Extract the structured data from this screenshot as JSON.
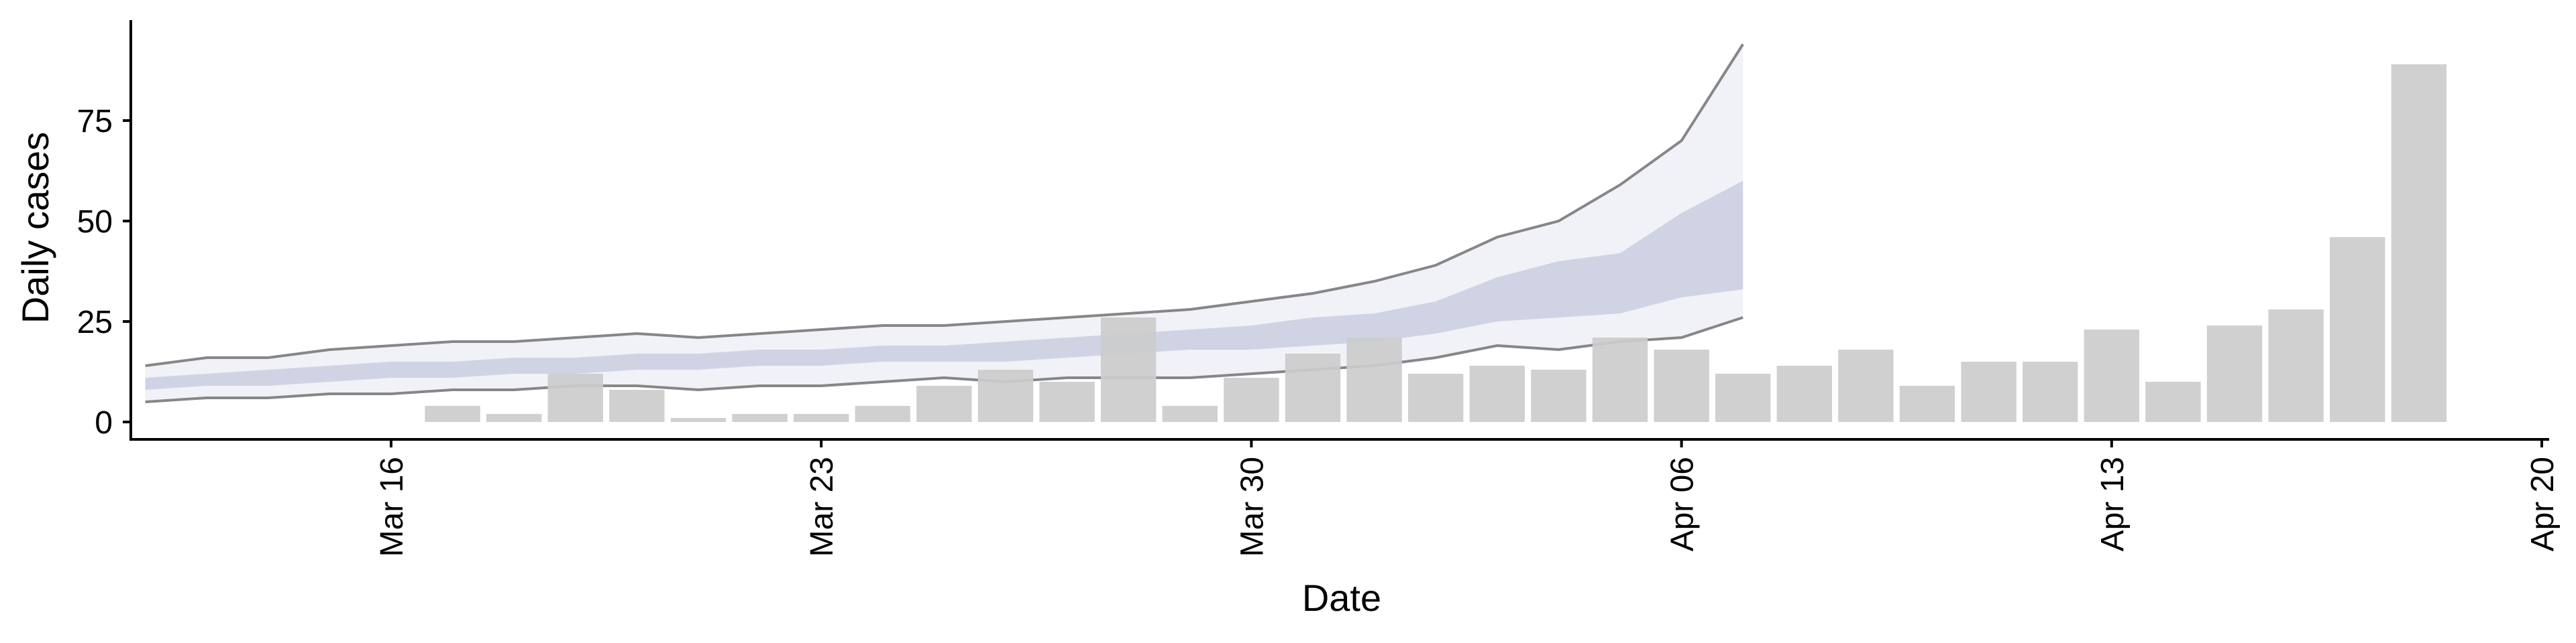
{
  "chart_data": {
    "type": "bar",
    "xlabel": "Date",
    "ylabel": "Daily cases",
    "x_tick_labels": [
      "Mar 16",
      "Mar 23",
      "Mar 30",
      "Apr 06",
      "Apr 13",
      "Apr 20"
    ],
    "x_tick_dates": [
      "2020-03-16",
      "2020-03-23",
      "2020-03-30",
      "2020-04-06",
      "2020-04-13",
      "2020-04-20"
    ],
    "y_ticks": [
      0,
      25,
      50,
      75
    ],
    "xlim": [
      "2020-03-11",
      "2020-04-20"
    ],
    "ylim": [
      -4,
      100
    ],
    "grid": false,
    "legend": "none",
    "series": [
      {
        "kind": "bar",
        "color": "#cccccc",
        "points": [
          {
            "date": "2020-03-17",
            "value": 4
          },
          {
            "date": "2020-03-18",
            "value": 2
          },
          {
            "date": "2020-03-19",
            "value": 12
          },
          {
            "date": "2020-03-20",
            "value": 8
          },
          {
            "date": "2020-03-21",
            "value": 1
          },
          {
            "date": "2020-03-22",
            "value": 2
          },
          {
            "date": "2020-03-23",
            "value": 2
          },
          {
            "date": "2020-03-24",
            "value": 4
          },
          {
            "date": "2020-03-25",
            "value": 9
          },
          {
            "date": "2020-03-26",
            "value": 13
          },
          {
            "date": "2020-03-27",
            "value": 10
          },
          {
            "date": "2020-03-28",
            "value": 26
          },
          {
            "date": "2020-03-29",
            "value": 4
          },
          {
            "date": "2020-03-30",
            "value": 11
          },
          {
            "date": "2020-03-31",
            "value": 17
          },
          {
            "date": "2020-04-01",
            "value": 21
          },
          {
            "date": "2020-04-02",
            "value": 12
          },
          {
            "date": "2020-04-03",
            "value": 14
          },
          {
            "date": "2020-04-04",
            "value": 13
          },
          {
            "date": "2020-04-05",
            "value": 21
          },
          {
            "date": "2020-04-06",
            "value": 18
          },
          {
            "date": "2020-04-07",
            "value": 12
          },
          {
            "date": "2020-04-08",
            "value": 14
          },
          {
            "date": "2020-04-09",
            "value": 18
          },
          {
            "date": "2020-04-10",
            "value": 9
          },
          {
            "date": "2020-04-11",
            "value": 15
          },
          {
            "date": "2020-04-12",
            "value": 15
          },
          {
            "date": "2020-04-13",
            "value": 23
          },
          {
            "date": "2020-04-14",
            "value": 10
          },
          {
            "date": "2020-04-15",
            "value": 24
          },
          {
            "date": "2020-04-16",
            "value": 28
          },
          {
            "date": "2020-04-17",
            "value": 46
          },
          {
            "date": "2020-04-18",
            "value": 89
          }
        ]
      },
      {
        "kind": "interval",
        "role": "outer",
        "color": "#eef0f6",
        "line_color": "#7a7a7a",
        "points": [
          {
            "date": "2020-03-12",
            "low": 5,
            "high": 14
          },
          {
            "date": "2020-03-13",
            "low": 6,
            "high": 16
          },
          {
            "date": "2020-03-14",
            "low": 6,
            "high": 16
          },
          {
            "date": "2020-03-15",
            "low": 7,
            "high": 18
          },
          {
            "date": "2020-03-16",
            "low": 7,
            "high": 19
          },
          {
            "date": "2020-03-17",
            "low": 8,
            "high": 20
          },
          {
            "date": "2020-03-18",
            "low": 8,
            "high": 20
          },
          {
            "date": "2020-03-19",
            "low": 9,
            "high": 21
          },
          {
            "date": "2020-03-20",
            "low": 9,
            "high": 22
          },
          {
            "date": "2020-03-21",
            "low": 8,
            "high": 21
          },
          {
            "date": "2020-03-22",
            "low": 9,
            "high": 22
          },
          {
            "date": "2020-03-23",
            "low": 9,
            "high": 23
          },
          {
            "date": "2020-03-24",
            "low": 10,
            "high": 24
          },
          {
            "date": "2020-03-25",
            "low": 11,
            "high": 24
          },
          {
            "date": "2020-03-26",
            "low": 10,
            "high": 25
          },
          {
            "date": "2020-03-27",
            "low": 11,
            "high": 26
          },
          {
            "date": "2020-03-28",
            "low": 11,
            "high": 27
          },
          {
            "date": "2020-03-29",
            "low": 11,
            "high": 28
          },
          {
            "date": "2020-03-30",
            "low": 12,
            "high": 30
          },
          {
            "date": "2020-03-31",
            "low": 13,
            "high": 32
          },
          {
            "date": "2020-04-01",
            "low": 14,
            "high": 35
          },
          {
            "date": "2020-04-02",
            "low": 16,
            "high": 39
          },
          {
            "date": "2020-04-03",
            "low": 19,
            "high": 46
          },
          {
            "date": "2020-04-04",
            "low": 18,
            "high": 50
          },
          {
            "date": "2020-04-05",
            "low": 20,
            "high": 59
          },
          {
            "date": "2020-04-06",
            "low": 21,
            "high": 70
          },
          {
            "date": "2020-04-07",
            "low": 26,
            "high": 94
          }
        ]
      },
      {
        "kind": "interval",
        "role": "inner",
        "color": "#c3c8dc",
        "points": [
          {
            "date": "2020-03-12",
            "low": 8,
            "high": 11
          },
          {
            "date": "2020-03-13",
            "low": 9,
            "high": 12
          },
          {
            "date": "2020-03-14",
            "low": 9,
            "high": 13
          },
          {
            "date": "2020-03-15",
            "low": 10,
            "high": 14
          },
          {
            "date": "2020-03-16",
            "low": 11,
            "high": 15
          },
          {
            "date": "2020-03-17",
            "low": 11,
            "high": 15
          },
          {
            "date": "2020-03-18",
            "low": 12,
            "high": 16
          },
          {
            "date": "2020-03-19",
            "low": 12,
            "high": 16
          },
          {
            "date": "2020-03-20",
            "low": 13,
            "high": 17
          },
          {
            "date": "2020-03-21",
            "low": 13,
            "high": 17
          },
          {
            "date": "2020-03-22",
            "low": 14,
            "high": 18
          },
          {
            "date": "2020-03-23",
            "low": 14,
            "high": 18
          },
          {
            "date": "2020-03-24",
            "low": 15,
            "high": 19
          },
          {
            "date": "2020-03-25",
            "low": 15,
            "high": 19
          },
          {
            "date": "2020-03-26",
            "low": 15,
            "high": 20
          },
          {
            "date": "2020-03-27",
            "low": 16,
            "high": 21
          },
          {
            "date": "2020-03-28",
            "low": 17,
            "high": 22
          },
          {
            "date": "2020-03-29",
            "low": 18,
            "high": 23
          },
          {
            "date": "2020-03-30",
            "low": 18,
            "high": 24
          },
          {
            "date": "2020-03-31",
            "low": 19,
            "high": 26
          },
          {
            "date": "2020-04-01",
            "low": 20,
            "high": 27
          },
          {
            "date": "2020-04-02",
            "low": 22,
            "high": 30
          },
          {
            "date": "2020-04-03",
            "low": 25,
            "high": 36
          },
          {
            "date": "2020-04-04",
            "low": 26,
            "high": 40
          },
          {
            "date": "2020-04-05",
            "low": 27,
            "high": 42
          },
          {
            "date": "2020-04-06",
            "low": 31,
            "high": 52
          },
          {
            "date": "2020-04-07",
            "low": 33,
            "high": 60
          }
        ]
      }
    ]
  }
}
